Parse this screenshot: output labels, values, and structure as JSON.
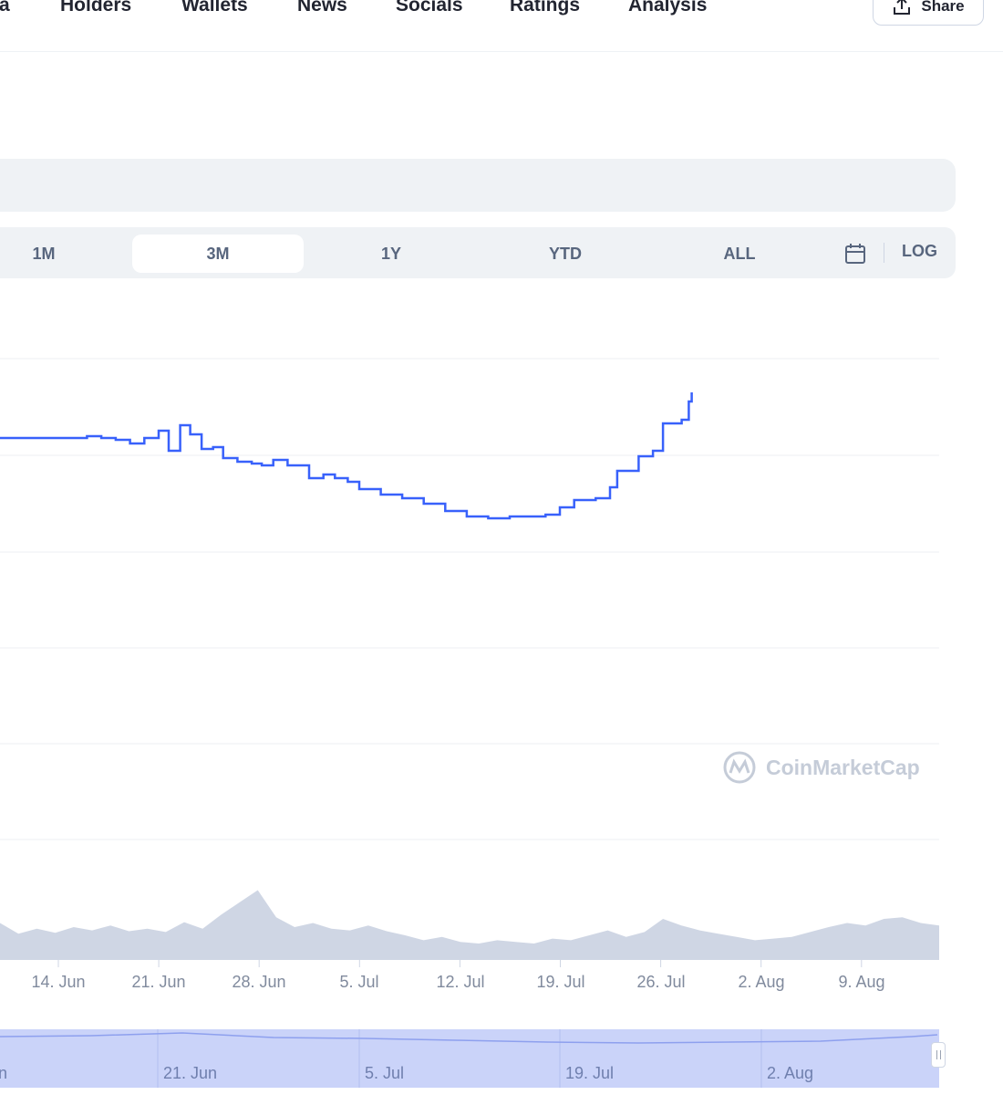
{
  "nav": {
    "items": [
      "ta",
      "Holders",
      "Wallets",
      "News",
      "Socials",
      "Ratings",
      "Analysis"
    ],
    "share_label": "Share"
  },
  "range": {
    "options": [
      "1M",
      "3M",
      "1Y",
      "YTD",
      "ALL"
    ],
    "active": "3M",
    "log_label": "LOG"
  },
  "watermark": "CoinMarketCap",
  "colors": {
    "line": "#3861fb",
    "volume": "#cfd6e4",
    "navigator": "#cad3f9",
    "active_tab": "#ffffff"
  },
  "chart_data": {
    "type": "line",
    "x_ticks": [
      "14. Jun",
      "21. Jun",
      "28. Jun",
      "5. Jul",
      "12. Jul",
      "19. Jul",
      "26. Jul",
      "2. Aug",
      "9. Aug"
    ],
    "navigator_ticks": [
      "n",
      "21. Jun",
      "5. Jul",
      "19. Jul",
      "2. Aug"
    ],
    "price_series": [
      [
        7.0,
        0.0
      ],
      [
        8.0,
        0.0
      ],
      [
        9.0,
        0.05
      ],
      [
        10.0,
        0.0
      ],
      [
        11.0,
        -0.05
      ],
      [
        12.0,
        -0.15
      ],
      [
        13.0,
        0.0
      ],
      [
        14.0,
        0.2
      ],
      [
        14.7,
        -0.35
      ],
      [
        15.5,
        0.35
      ],
      [
        16.2,
        0.1
      ],
      [
        17.0,
        -0.3
      ],
      [
        17.8,
        -0.25
      ],
      [
        18.5,
        -0.55
      ],
      [
        19.5,
        -0.65
      ],
      [
        20.5,
        -0.7
      ],
      [
        21.2,
        -0.75
      ],
      [
        22.0,
        -0.6
      ],
      [
        23.0,
        -0.75
      ],
      [
        24.0,
        -0.75
      ],
      [
        24.5,
        -1.1
      ],
      [
        25.5,
        -1.0
      ],
      [
        26.3,
        -1.1
      ],
      [
        27.2,
        -1.2
      ],
      [
        28.0,
        -1.4
      ],
      [
        29.5,
        -1.55
      ],
      [
        31.0,
        -1.65
      ],
      [
        32.5,
        -1.8
      ],
      [
        34.0,
        -2.0
      ],
      [
        35.5,
        -2.15
      ],
      [
        37.0,
        -2.2
      ],
      [
        38.5,
        -2.15
      ],
      [
        40.0,
        -2.15
      ],
      [
        41.0,
        -2.1
      ],
      [
        42.0,
        -1.9
      ],
      [
        43.0,
        -1.7
      ],
      [
        44.5,
        -1.65
      ],
      [
        45.5,
        -1.35
      ],
      [
        46.0,
        -0.9
      ],
      [
        47.5,
        -0.5
      ],
      [
        48.5,
        -0.35
      ],
      [
        49.2,
        0.4
      ],
      [
        50.5,
        0.5
      ],
      [
        51.0,
        1.0
      ],
      [
        51.2,
        1.25
      ]
    ],
    "volume_series": [
      [
        0,
        0.45
      ],
      [
        1,
        0.32
      ],
      [
        2,
        0.38
      ],
      [
        3,
        0.33
      ],
      [
        4,
        0.4
      ],
      [
        5,
        0.36
      ],
      [
        6,
        0.42
      ],
      [
        7,
        0.35
      ],
      [
        8,
        0.38
      ],
      [
        9,
        0.34
      ],
      [
        10,
        0.46
      ],
      [
        11,
        0.38
      ],
      [
        12,
        0.55
      ],
      [
        13,
        0.7
      ],
      [
        14,
        0.85
      ],
      [
        15,
        0.52
      ],
      [
        16,
        0.4
      ],
      [
        17,
        0.45
      ],
      [
        18,
        0.38
      ],
      [
        19,
        0.36
      ],
      [
        20,
        0.42
      ],
      [
        21,
        0.35
      ],
      [
        22,
        0.3
      ],
      [
        23,
        0.24
      ],
      [
        24,
        0.28
      ],
      [
        25,
        0.22
      ],
      [
        26,
        0.2
      ],
      [
        27,
        0.24
      ],
      [
        28,
        0.22
      ],
      [
        29,
        0.2
      ],
      [
        30,
        0.26
      ],
      [
        31,
        0.24
      ],
      [
        32,
        0.3
      ],
      [
        33,
        0.36
      ],
      [
        34,
        0.28
      ],
      [
        35,
        0.34
      ],
      [
        36,
        0.5
      ],
      [
        37,
        0.42
      ],
      [
        38,
        0.36
      ],
      [
        39,
        0.32
      ],
      [
        40,
        0.28
      ],
      [
        41,
        0.24
      ],
      [
        42,
        0.26
      ],
      [
        43,
        0.28
      ],
      [
        44,
        0.34
      ],
      [
        45,
        0.4
      ],
      [
        46,
        0.45
      ],
      [
        47,
        0.42
      ],
      [
        48,
        0.5
      ],
      [
        49,
        0.52
      ],
      [
        50,
        0.45
      ],
      [
        51,
        0.42
      ]
    ],
    "gridlines": 6,
    "grid": true,
    "legend": "none"
  }
}
